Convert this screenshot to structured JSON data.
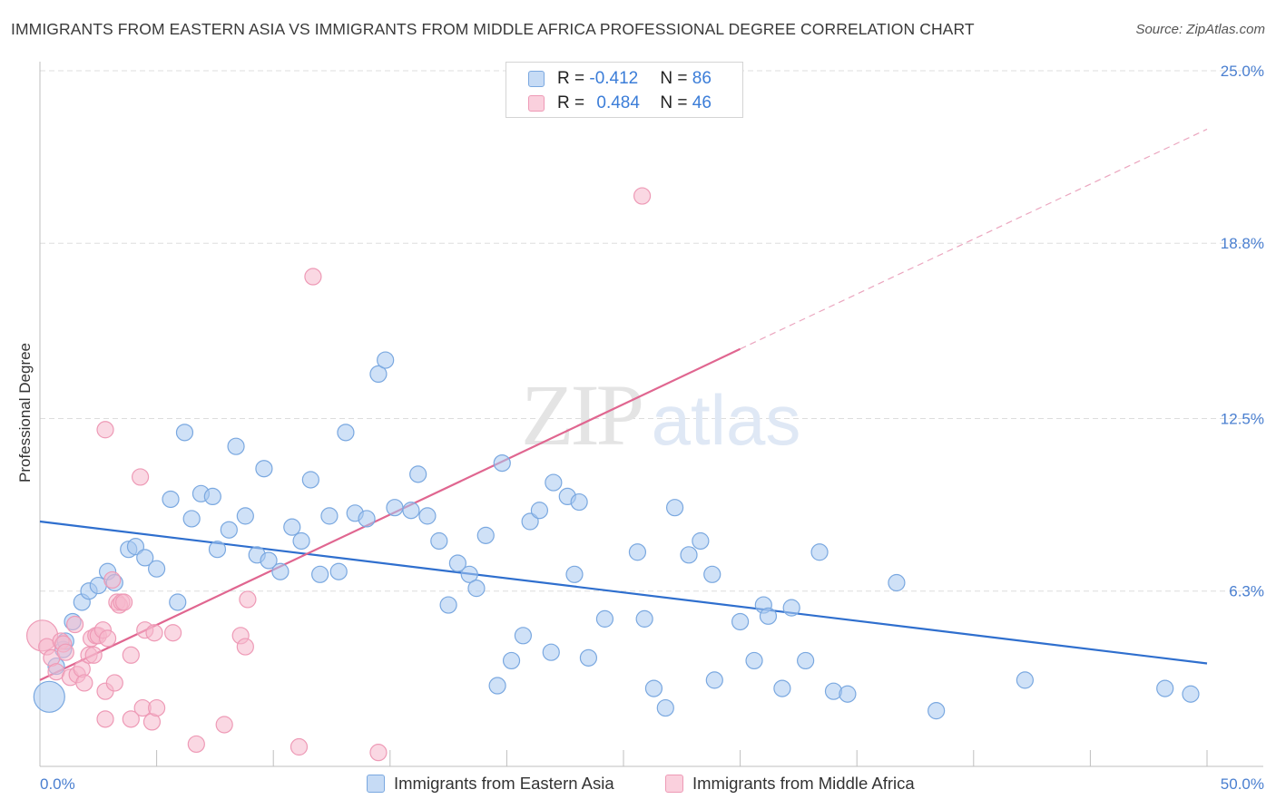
{
  "header": {
    "title": "IMMIGRANTS FROM EASTERN ASIA VS IMMIGRANTS FROM MIDDLE AFRICA PROFESSIONAL DEGREE CORRELATION CHART",
    "source": "Source: ZipAtlas.com"
  },
  "watermark": {
    "zip": "ZIP",
    "atlas": "atlas"
  },
  "legend": {
    "rows": [
      {
        "r_label": "R = ",
        "r_value": "-0.412",
        "n_label": "N = ",
        "n_value": "86"
      },
      {
        "r_label": "R = ",
        "r_value": "0.484",
        "n_label": "N = ",
        "n_value": "46"
      }
    ]
  },
  "colors": {
    "blue_fill": "#a8c8f0",
    "blue_stroke": "#7aa8e0",
    "blue_line": "#2f6fce",
    "pink_fill": "#f6b8cc",
    "pink_stroke": "#ee9ab6",
    "pink_line": "#e06690",
    "grid": "#dddddd",
    "axis_text": "#4a7fd0"
  },
  "chart_data": {
    "type": "scatter",
    "title": "IMMIGRANTS FROM EASTERN ASIA VS IMMIGRANTS FROM MIDDLE AFRICA PROFESSIONAL DEGREE CORRELATION CHART",
    "xlabel": "",
    "ylabel": "Professional Degree",
    "xlim": [
      0,
      50
    ],
    "ylim": [
      0,
      25
    ],
    "x_tick_labels": [
      "0.0%",
      "50.0%"
    ],
    "y_ticks": [
      {
        "value": 6.3,
        "label": "6.3%"
      },
      {
        "value": 12.5,
        "label": "12.5%"
      },
      {
        "value": 18.8,
        "label": "18.8%"
      },
      {
        "value": 25.0,
        "label": "25.0%"
      }
    ],
    "grid": true,
    "legend_position": "top-center",
    "series": [
      {
        "name": "Immigrants from Eastern Asia",
        "color": "#a8c8f0",
        "trend": {
          "x0": 0,
          "y0": 8.8,
          "x1": 50,
          "y1": 3.7
        },
        "points": [
          {
            "x": 0.4,
            "y": 2.5,
            "big": true
          },
          {
            "x": 0.7,
            "y": 3.6
          },
          {
            "x": 1.0,
            "y": 4.2
          },
          {
            "x": 1.1,
            "y": 4.5
          },
          {
            "x": 1.4,
            "y": 5.2
          },
          {
            "x": 1.8,
            "y": 5.9
          },
          {
            "x": 2.1,
            "y": 6.3
          },
          {
            "x": 2.5,
            "y": 6.5
          },
          {
            "x": 2.9,
            "y": 7.0
          },
          {
            "x": 3.2,
            "y": 6.6
          },
          {
            "x": 3.8,
            "y": 7.8
          },
          {
            "x": 4.1,
            "y": 7.9
          },
          {
            "x": 4.5,
            "y": 7.5
          },
          {
            "x": 5.0,
            "y": 7.1
          },
          {
            "x": 5.6,
            "y": 9.6
          },
          {
            "x": 5.9,
            "y": 5.9
          },
          {
            "x": 6.2,
            "y": 12.0
          },
          {
            "x": 6.5,
            "y": 8.9
          },
          {
            "x": 6.9,
            "y": 9.8
          },
          {
            "x": 7.4,
            "y": 9.7
          },
          {
            "x": 7.6,
            "y": 7.8
          },
          {
            "x": 8.1,
            "y": 8.5
          },
          {
            "x": 8.4,
            "y": 11.5
          },
          {
            "x": 8.8,
            "y": 9.0
          },
          {
            "x": 9.3,
            "y": 7.6
          },
          {
            "x": 9.6,
            "y": 10.7
          },
          {
            "x": 9.8,
            "y": 7.4
          },
          {
            "x": 10.3,
            "y": 7.0
          },
          {
            "x": 10.8,
            "y": 8.6
          },
          {
            "x": 11.2,
            "y": 8.1
          },
          {
            "x": 11.6,
            "y": 10.3
          },
          {
            "x": 12.0,
            "y": 6.9
          },
          {
            "x": 12.4,
            "y": 9.0
          },
          {
            "x": 12.8,
            "y": 7.0
          },
          {
            "x": 13.1,
            "y": 12.0
          },
          {
            "x": 13.5,
            "y": 9.1
          },
          {
            "x": 14.0,
            "y": 8.9
          },
          {
            "x": 14.5,
            "y": 14.1
          },
          {
            "x": 14.8,
            "y": 14.6
          },
          {
            "x": 15.2,
            "y": 9.3
          },
          {
            "x": 15.9,
            "y": 9.2
          },
          {
            "x": 16.2,
            "y": 10.5
          },
          {
            "x": 16.6,
            "y": 9.0
          },
          {
            "x": 17.1,
            "y": 8.1
          },
          {
            "x": 17.5,
            "y": 5.8
          },
          {
            "x": 17.9,
            "y": 7.3
          },
          {
            "x": 18.4,
            "y": 6.9
          },
          {
            "x": 18.7,
            "y": 6.4
          },
          {
            "x": 19.1,
            "y": 8.3
          },
          {
            "x": 19.6,
            "y": 2.9
          },
          {
            "x": 19.8,
            "y": 10.9
          },
          {
            "x": 20.2,
            "y": 3.8
          },
          {
            "x": 20.7,
            "y": 4.7
          },
          {
            "x": 21.0,
            "y": 8.8
          },
          {
            "x": 21.4,
            "y": 9.2
          },
          {
            "x": 21.9,
            "y": 4.1
          },
          {
            "x": 22.0,
            "y": 10.2
          },
          {
            "x": 22.6,
            "y": 9.7
          },
          {
            "x": 22.9,
            "y": 6.9
          },
          {
            "x": 23.1,
            "y": 9.5
          },
          {
            "x": 23.5,
            "y": 3.9
          },
          {
            "x": 24.2,
            "y": 5.3
          },
          {
            "x": 25.6,
            "y": 7.7
          },
          {
            "x": 25.9,
            "y": 5.3
          },
          {
            "x": 26.3,
            "y": 2.8
          },
          {
            "x": 26.8,
            "y": 2.1
          },
          {
            "x": 27.2,
            "y": 9.3
          },
          {
            "x": 27.8,
            "y": 7.6
          },
          {
            "x": 28.3,
            "y": 8.1
          },
          {
            "x": 28.8,
            "y": 6.9
          },
          {
            "x": 28.9,
            "y": 3.1
          },
          {
            "x": 30.0,
            "y": 5.2
          },
          {
            "x": 30.6,
            "y": 3.8
          },
          {
            "x": 31.0,
            "y": 5.8
          },
          {
            "x": 31.2,
            "y": 5.4
          },
          {
            "x": 31.8,
            "y": 2.8
          },
          {
            "x": 32.2,
            "y": 5.7
          },
          {
            "x": 32.8,
            "y": 3.8
          },
          {
            "x": 33.4,
            "y": 7.7
          },
          {
            "x": 34.0,
            "y": 2.7
          },
          {
            "x": 34.6,
            "y": 2.6
          },
          {
            "x": 36.7,
            "y": 6.6
          },
          {
            "x": 38.4,
            "y": 2.0
          },
          {
            "x": 42.2,
            "y": 3.1
          },
          {
            "x": 48.2,
            "y": 2.8
          },
          {
            "x": 49.3,
            "y": 2.6
          }
        ]
      },
      {
        "name": "Immigrants from Middle Africa",
        "color": "#f6b8cc",
        "trend": {
          "x0": 0,
          "y0": 3.1,
          "x1": 30,
          "y1": 15.0,
          "dash_x1": 50,
          "dash_y1": 22.9
        },
        "points": [
          {
            "x": 0.1,
            "y": 4.7,
            "big": true
          },
          {
            "x": 0.3,
            "y": 4.3
          },
          {
            "x": 0.5,
            "y": 3.9
          },
          {
            "x": 0.7,
            "y": 3.4
          },
          {
            "x": 0.9,
            "y": 4.5
          },
          {
            "x": 1.0,
            "y": 4.4
          },
          {
            "x": 1.1,
            "y": 4.1
          },
          {
            "x": 1.3,
            "y": 3.2
          },
          {
            "x": 1.5,
            "y": 5.1
          },
          {
            "x": 1.6,
            "y": 3.3
          },
          {
            "x": 1.8,
            "y": 3.5
          },
          {
            "x": 1.9,
            "y": 3.0
          },
          {
            "x": 2.1,
            "y": 4.0
          },
          {
            "x": 2.2,
            "y": 4.6
          },
          {
            "x": 2.3,
            "y": 4.0
          },
          {
            "x": 2.4,
            "y": 4.7
          },
          {
            "x": 2.5,
            "y": 4.7
          },
          {
            "x": 2.7,
            "y": 4.9
          },
          {
            "x": 2.8,
            "y": 2.7
          },
          {
            "x": 2.8,
            "y": 1.7
          },
          {
            "x": 2.8,
            "y": 12.1
          },
          {
            "x": 2.9,
            "y": 4.6
          },
          {
            "x": 3.1,
            "y": 6.7
          },
          {
            "x": 3.2,
            "y": 3.0
          },
          {
            "x": 3.3,
            "y": 5.9
          },
          {
            "x": 3.4,
            "y": 5.8
          },
          {
            "x": 3.5,
            "y": 5.9
          },
          {
            "x": 3.6,
            "y": 5.9
          },
          {
            "x": 3.9,
            "y": 1.7
          },
          {
            "x": 3.9,
            "y": 4.0
          },
          {
            "x": 4.3,
            "y": 10.4
          },
          {
            "x": 4.4,
            "y": 2.1
          },
          {
            "x": 4.5,
            "y": 4.9
          },
          {
            "x": 4.8,
            "y": 1.6
          },
          {
            "x": 4.9,
            "y": 4.8
          },
          {
            "x": 5.0,
            "y": 2.1
          },
          {
            "x": 5.7,
            "y": 4.8
          },
          {
            "x": 6.7,
            "y": 0.8
          },
          {
            "x": 7.9,
            "y": 1.5
          },
          {
            "x": 8.6,
            "y": 4.7
          },
          {
            "x": 8.8,
            "y": 4.3
          },
          {
            "x": 8.9,
            "y": 6.0
          },
          {
            "x": 11.1,
            "y": 0.7
          },
          {
            "x": 11.7,
            "y": 17.6
          },
          {
            "x": 14.5,
            "y": 0.5
          },
          {
            "x": 25.8,
            "y": 20.5
          }
        ]
      }
    ]
  },
  "bottom_legend": {
    "items": [
      {
        "label": "Immigrants from Eastern Asia"
      },
      {
        "label": "Immigrants from Middle Africa"
      }
    ]
  }
}
